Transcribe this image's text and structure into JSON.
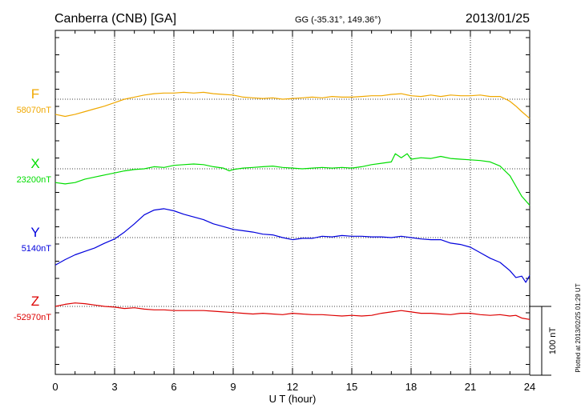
{
  "chart_data": {
    "type": "line",
    "title_station": "Canberra (CNB)  [GA]",
    "title_coords": "GG (-35.31°, 149.36°)",
    "title_date": "2013/01/25",
    "xlabel": "U T (hour)",
    "xlim": [
      0,
      24
    ],
    "xticks": [
      0,
      3,
      6,
      9,
      12,
      15,
      18,
      21,
      24
    ],
    "xtick_labels": [
      "0",
      "3",
      "6",
      "9",
      "12",
      "15",
      "18",
      "21",
      "24"
    ],
    "scale_bar_label": "100 nT",
    "plotted_note": "Plotted at 2013/02/25 01:29 UT",
    "series": [
      {
        "name": "F",
        "baseline_label": "58070nT",
        "color": "#f0a800",
        "x": [
          0,
          0.5,
          1,
          1.5,
          2,
          2.5,
          3,
          3.5,
          4,
          4.5,
          5,
          5.5,
          6,
          6.5,
          7,
          7.5,
          8,
          8.5,
          9,
          9.5,
          10,
          10.5,
          11,
          11.5,
          12,
          12.5,
          13,
          13.5,
          14,
          14.5,
          15,
          15.5,
          16,
          16.5,
          17,
          17.5,
          18,
          18.5,
          19,
          19.5,
          20,
          20.5,
          21,
          21.5,
          22,
          22.5,
          22.8,
          23,
          23.3,
          23.6,
          24
        ],
        "y": [
          -22,
          -25,
          -22,
          -18,
          -14,
          -10,
          -5,
          0,
          3,
          6,
          8,
          9,
          9,
          10,
          9,
          10,
          8,
          7,
          6,
          3,
          2,
          1,
          2,
          0,
          1,
          2,
          3,
          2,
          4,
          3,
          3,
          4,
          5,
          5,
          7,
          8,
          5,
          4,
          6,
          4,
          6,
          5,
          5,
          6,
          4,
          4,
          0,
          -3,
          -10,
          -18,
          -28
        ]
      },
      {
        "name": "X",
        "baseline_label": "23200nT",
        "color": "#00dd00",
        "x": [
          0,
          0.5,
          1,
          1.5,
          2,
          2.5,
          3,
          3.5,
          4,
          4.5,
          5,
          5.5,
          6,
          6.5,
          7,
          7.5,
          8,
          8.5,
          8.8,
          9,
          9.5,
          10,
          10.5,
          11,
          11.5,
          12,
          12.5,
          13,
          13.5,
          14,
          14.5,
          15,
          15.5,
          16,
          16.5,
          17,
          17.2,
          17.5,
          17.8,
          18,
          18.5,
          19,
          19.5,
          20,
          20.5,
          21,
          21.5,
          22,
          22.5,
          23,
          23.3,
          23.6,
          24
        ],
        "y": [
          -20,
          -22,
          -20,
          -15,
          -12,
          -9,
          -6,
          -3,
          -1,
          0,
          3,
          2,
          5,
          6,
          7,
          6,
          3,
          1,
          -3,
          -1,
          1,
          2,
          3,
          4,
          2,
          1,
          0,
          1,
          2,
          1,
          2,
          1,
          3,
          6,
          8,
          10,
          22,
          16,
          22,
          14,
          16,
          15,
          18,
          15,
          14,
          13,
          12,
          10,
          4,
          -10,
          -25,
          -40,
          -53
        ]
      },
      {
        "name": "Y",
        "baseline_label": "5140nT",
        "color": "#0000dd",
        "x": [
          0,
          0.5,
          1,
          1.5,
          2,
          2.5,
          3,
          3.5,
          4,
          4.5,
          5,
          5.5,
          6,
          6.5,
          7,
          7.5,
          8,
          8.5,
          9,
          9.5,
          10,
          10.5,
          11,
          11.5,
          12,
          12.5,
          13,
          13.5,
          14,
          14.5,
          15,
          15.5,
          16,
          16.5,
          17,
          17.5,
          18,
          18.5,
          19,
          19.5,
          20,
          20.5,
          21,
          21.5,
          22,
          22.5,
          23,
          23.3,
          23.6,
          23.8,
          24
        ],
        "y": [
          -40,
          -32,
          -25,
          -20,
          -15,
          -8,
          -2,
          8,
          20,
          33,
          40,
          42,
          39,
          34,
          30,
          26,
          20,
          16,
          12,
          10,
          8,
          5,
          4,
          0,
          -3,
          -1,
          -1,
          2,
          1,
          3,
          2,
          2,
          1,
          1,
          0,
          2,
          0,
          -2,
          -3,
          -3,
          -8,
          -10,
          -14,
          -22,
          -30,
          -36,
          -48,
          -58,
          -56,
          -65,
          -55
        ]
      },
      {
        "name": "Z",
        "baseline_label": "-52970nT",
        "color": "#dd0000",
        "x": [
          0,
          0.5,
          1,
          1.5,
          2,
          2.5,
          3,
          3.5,
          4,
          4.5,
          5,
          5.5,
          6,
          6.5,
          7,
          7.5,
          8,
          8.5,
          9,
          9.5,
          10,
          10.5,
          11,
          11.5,
          12,
          12.5,
          13,
          13.5,
          14,
          14.5,
          15,
          15.5,
          16,
          16.5,
          17,
          17.5,
          18,
          18.5,
          19,
          19.5,
          20,
          20.5,
          21,
          21.5,
          22,
          22.5,
          23,
          23.3,
          23.6,
          24
        ],
        "y": [
          0,
          3,
          5,
          4,
          2,
          0,
          -1,
          -3,
          -2,
          -4,
          -5,
          -5,
          -6,
          -6,
          -6,
          -6,
          -7,
          -8,
          -9,
          -10,
          -11,
          -10,
          -11,
          -12,
          -10,
          -11,
          -12,
          -12,
          -13,
          -14,
          -13,
          -14,
          -13,
          -10,
          -8,
          -6,
          -8,
          -10,
          -10,
          -11,
          -12,
          -10,
          -10,
          -12,
          -13,
          -12,
          -14,
          -13,
          -17,
          -19
        ]
      }
    ]
  }
}
